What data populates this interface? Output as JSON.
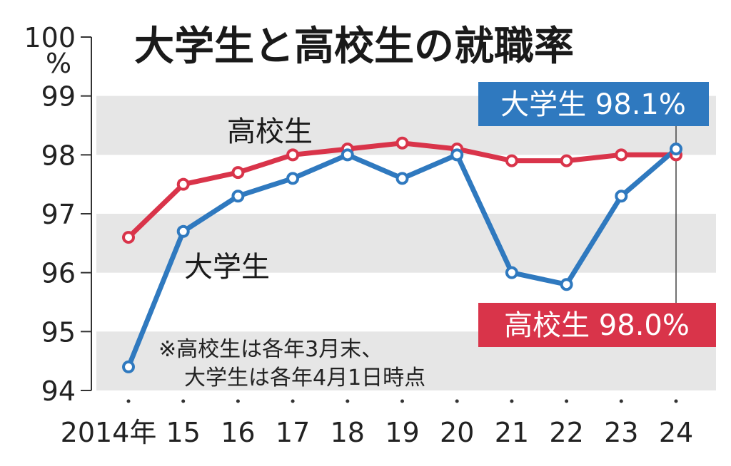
{
  "chart_data": {
    "type": "line",
    "title": "大学生と高校生の就職率",
    "yunit": "%",
    "categories": [
      "2014年",
      "15",
      "16",
      "17",
      "18",
      "19",
      "20",
      "21",
      "22",
      "23",
      "24"
    ],
    "ylim": [
      94,
      100
    ],
    "yticks": [
      "94",
      "95",
      "96",
      "97",
      "98",
      "99",
      "100"
    ],
    "series": [
      {
        "name": "高校生",
        "color": "#d9344a",
        "values": [
          96.6,
          97.5,
          97.7,
          98.0,
          98.1,
          98.2,
          98.1,
          97.9,
          97.9,
          98.0,
          98.0
        ]
      },
      {
        "name": "大学生",
        "color": "#2f79bf",
        "values": [
          94.4,
          96.7,
          97.3,
          97.6,
          98.0,
          97.6,
          98.0,
          96.0,
          95.8,
          97.3,
          98.1
        ]
      }
    ],
    "callouts": [
      {
        "series": "大学生",
        "text": "大学生 98.1%",
        "color": "#2f79bf"
      },
      {
        "series": "高校生",
        "text": "高校生 98.0%",
        "color": "#d9344a"
      }
    ],
    "note_lines": [
      "※高校生は各年3月末、",
      "大学生は各年4月1日時点"
    ],
    "band_color": "#e6e6e6"
  }
}
